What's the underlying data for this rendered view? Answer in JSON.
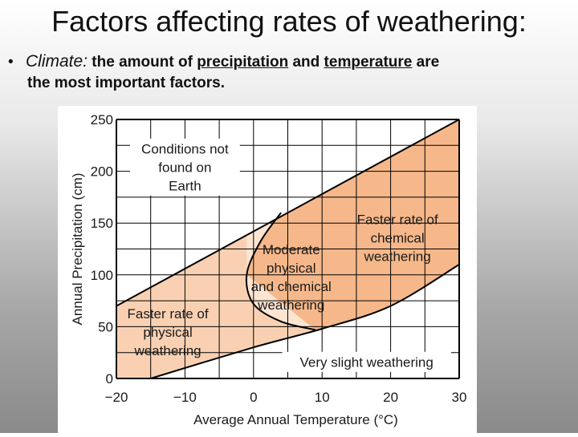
{
  "slide": {
    "title": "Factors affecting rates of weathering:",
    "bullet": {
      "marker": "•",
      "keyword": "Climate",
      "colon": ":",
      "text_a": " the amount of ",
      "link1": "precipitation",
      "text_b": " and ",
      "link2": "temperature",
      "text_c": " are",
      "line2": "the most important factors."
    }
  },
  "chart_data": {
    "type": "diagram",
    "xlabel": "Average Annual Temperature (°C)",
    "ylabel": "Annual Precipitation (cm)",
    "xlim": [
      -20,
      30
    ],
    "ylim": [
      0,
      250
    ],
    "xticks": [
      -20,
      -10,
      0,
      10,
      20,
      30
    ],
    "xtick_labels": [
      "−20",
      "−10",
      "0",
      "10",
      "20",
      "30"
    ],
    "yticks": [
      0,
      50,
      100,
      150,
      200,
      250
    ],
    "ytick_labels": [
      "0",
      "50",
      "100",
      "150",
      "200",
      "250"
    ],
    "grid": true,
    "colors": {
      "chemical": "#f6b88a",
      "moderate": "#fde5d2",
      "physical": "#f9d1b2",
      "slight": "#ffffff",
      "grid": "#000000"
    },
    "regions": [
      {
        "name": "Conditions not found on Earth",
        "label_lines": [
          "Conditions not",
          "found on",
          "Earth"
        ],
        "label_at": [
          -10,
          204
        ]
      },
      {
        "name": "Faster rate of chemical weathering",
        "label_lines": [
          "Faster rate of",
          "chemical",
          "weathering"
        ],
        "label_at": [
          21,
          136
        ]
      },
      {
        "name": "Moderate physical and chemical weathering",
        "label_lines": [
          "Moderate",
          "physical",
          "and chemical",
          "weathering"
        ],
        "label_at": [
          5.5,
          98
        ]
      },
      {
        "name": "Faster rate of physical weathering",
        "label_lines": [
          "Faster rate of",
          "physical",
          "weathering"
        ],
        "label_at": [
          -12.5,
          45
        ]
      },
      {
        "name": "Very slight weathering",
        "label_lines": [
          "Very slight weathering"
        ],
        "label_at": [
          16.5,
          16
        ]
      }
    ],
    "boundaries": {
      "upper_limit": [
        [
          -20,
          70
        ],
        [
          30,
          250
        ]
      ],
      "lower_limit": [
        [
          -15,
          0
        ],
        [
          0,
          30
        ],
        [
          10,
          48
        ],
        [
          20,
          70
        ],
        [
          30,
          110
        ]
      ],
      "chemical_boundary": [
        [
          9,
          47
        ],
        [
          4,
          55
        ],
        [
          0,
          72
        ],
        [
          -1,
          100
        ],
        [
          1,
          132
        ],
        [
          4,
          160
        ]
      ]
    }
  }
}
